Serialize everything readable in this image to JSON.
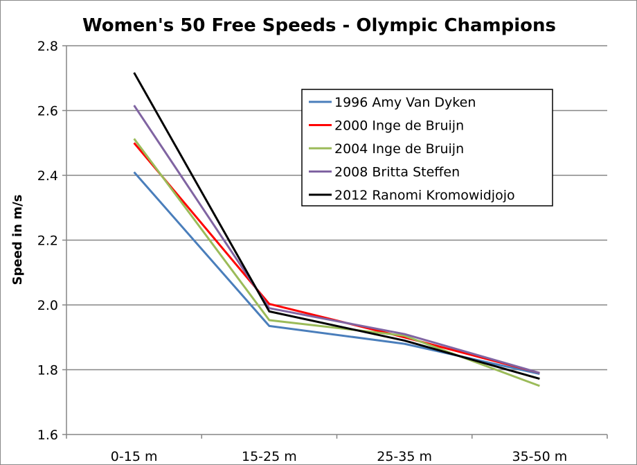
{
  "chart_data": {
    "type": "line",
    "title": "Women's 50 Free Speeds - Olympic Champions",
    "xlabel": "",
    "ylabel": "Speed in m/s",
    "ylim": [
      1.6,
      2.8
    ],
    "yticks": [
      "1.6",
      "1.8",
      "2.0",
      "2.2",
      "2.4",
      "2.6",
      "2.8"
    ],
    "categories": [
      "0-15 m",
      "15-25 m",
      "25-35 m",
      "35-50 m"
    ],
    "grid": true,
    "legend_position": "top-right",
    "series": [
      {
        "name": "1996 Amy Van Dyken",
        "color": "#4a7ebb",
        "values": [
          2.41,
          1.935,
          1.88,
          1.787
        ]
      },
      {
        "name": "2000 Inge de Bruijn",
        "color": "#ff0000",
        "values": [
          2.5,
          2.003,
          1.9,
          1.79
        ]
      },
      {
        "name": "2004 Inge de Bruijn",
        "color": "#9bbb59",
        "values": [
          2.513,
          1.953,
          1.905,
          1.75
        ]
      },
      {
        "name": "2008 Britta Steffen",
        "color": "#8064a2",
        "values": [
          2.616,
          1.99,
          1.91,
          1.79
        ]
      },
      {
        "name": "2012 Ranomi Kromowidjojo",
        "color": "#000000",
        "values": [
          2.717,
          1.98,
          1.89,
          1.772
        ]
      }
    ]
  }
}
